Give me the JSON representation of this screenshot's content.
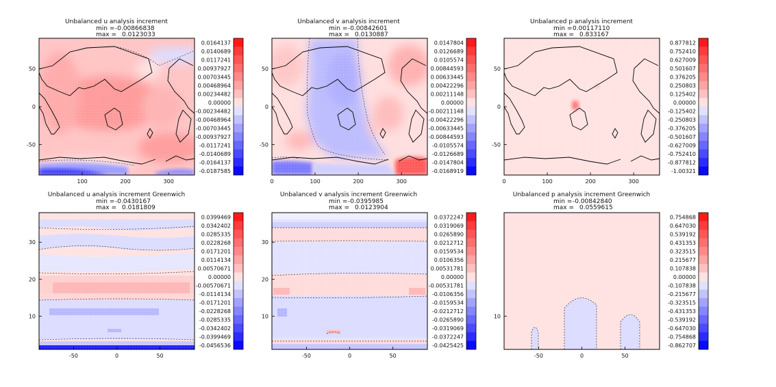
{
  "chart_data": [
    {
      "type": "heatmap",
      "title": "Unbalanced u analysis increment",
      "min_label": "min =",
      "max_label": "max =",
      "min_value": "-0.00866838",
      "max_value": "0.0123033",
      "x_ticks": [
        "100",
        "200",
        "300"
      ],
      "y_ticks": [
        "50",
        "0",
        "-50"
      ],
      "xlim": [
        0,
        360
      ],
      "ylim": [
        -90,
        90
      ],
      "map": true,
      "colorbar": [
        "0.0164137",
        "0.0140689",
        "0.0117241",
        "0.00937927",
        "0.00703445",
        "0.00468964",
        "0.00234482",
        "0.00000",
        "-0.00234482",
        "-0.00468964",
        "-0.00703445",
        "-0.00937927",
        "-0.0117241",
        "-0.0140689",
        "-0.0164137",
        "-0.0187585"
      ]
    },
    {
      "type": "heatmap",
      "title": "Unbalanced v analysis increment",
      "min_label": "min =",
      "max_label": "max =",
      "min_value": "-0.00842601",
      "max_value": "0.0130887",
      "x_ticks": [
        "0",
        "100",
        "200",
        "300"
      ],
      "y_ticks": [
        "50",
        "0",
        "-50"
      ],
      "xlim": [
        0,
        360
      ],
      "ylim": [
        -90,
        90
      ],
      "map": true,
      "colorbar": [
        "0.0147804",
        "0.0126689",
        "0.0105574",
        "0.00844593",
        "0.00633445",
        "0.00422296",
        "0.00211148",
        "0.00000",
        "-0.00211148",
        "-0.00422296",
        "-0.00633445",
        "-0.00844593",
        "-0.0105574",
        "-0.0126689",
        "-0.0147804",
        "-0.0168919"
      ]
    },
    {
      "type": "heatmap",
      "title": "Unbalanced p analysis increment",
      "min_label": "min =",
      "max_label": "max =",
      "min_value": "0.00117110",
      "max_value": "0.833167",
      "x_ticks": [
        "0",
        "100",
        "200",
        "300"
      ],
      "y_ticks": [
        "50",
        "0",
        "-50"
      ],
      "xlim": [
        0,
        360
      ],
      "ylim": [
        -90,
        90
      ],
      "map": true,
      "colorbar": [
        "0.877812",
        "0.752410",
        "0.627009",
        "0.501607",
        "0.376205",
        "0.250803",
        "0.125402",
        "0.00000",
        "-0.125402",
        "-0.250803",
        "-0.376205",
        "-0.501607",
        "-0.627009",
        "-0.752410",
        "-0.877812",
        "-1.00321"
      ]
    },
    {
      "type": "heatmap",
      "title": "Unbalanced u analysis increment Greenwich",
      "min_label": "min =",
      "max_label": "max =",
      "min_value": "-0.0430167",
      "max_value": "0.0181809",
      "x_ticks": [
        "-50",
        "0",
        "50"
      ],
      "y_ticks": [
        "30",
        "20",
        "10"
      ],
      "xlim": [
        -90,
        90
      ],
      "ylim": [
        1,
        38
      ],
      "map": false,
      "colorbar": [
        "0.0399469",
        "0.0342402",
        "0.0285335",
        "0.0228268",
        "0.0171201",
        "0.0114134",
        "0.00570671",
        "0.00000",
        "-0.00570671",
        "-0.0114134",
        "-0.0171201",
        "-0.0228268",
        "-0.0285335",
        "-0.0342402",
        "-0.0399469",
        "-0.0456536"
      ]
    },
    {
      "type": "heatmap",
      "title": "Unbalanced v analysis increment Greenwich",
      "min_label": "min =",
      "max_label": "max =",
      "min_value": "-0.0395985",
      "max_value": "0.0123904",
      "x_ticks": [
        "-50",
        "0",
        "50"
      ],
      "y_ticks": [
        "30",
        "20",
        "10"
      ],
      "xlim": [
        -90,
        90
      ],
      "ylim": [
        1,
        38
      ],
      "map": false,
      "colorbar": [
        "0.0372247",
        "0.0319069",
        "0.0265890",
        "0.0212712",
        "0.0159534",
        "0.0106356",
        "0.00531781",
        "0.00000",
        "-0.00531781",
        "-0.0106356",
        "-0.0159534",
        "-0.0212712",
        "-0.0265890",
        "-0.0319069",
        "-0.0372247",
        "-0.0425425"
      ]
    },
    {
      "type": "heatmap",
      "title": "Unbalanced p analysis increment Greenwich",
      "min_label": "min =",
      "max_label": "max =",
      "min_value": "-0.00842840",
      "max_value": "0.0559615",
      "x_ticks": [
        "-50",
        "0",
        "50"
      ],
      "y_ticks": [
        "10"
      ],
      "xlim": [
        -90,
        90
      ],
      "ylim": [
        1,
        38
      ],
      "map": false,
      "colorbar": [
        "0.754868",
        "0.647030",
        "0.539192",
        "0.431353",
        "0.323515",
        "0.215677",
        "0.107838",
        "0.00000",
        "-0.107838",
        "-0.215677",
        "-0.323515",
        "-0.431353",
        "-0.539192",
        "-0.647030",
        "-0.754868",
        "-0.862707"
      ]
    }
  ],
  "colors": {
    "positive_steps": [
      "#ff1a1a",
      "#ff3b3b",
      "#ff5555",
      "#ff6f6f",
      "#ff8989",
      "#ffa3a3",
      "#ffc0c0",
      "#ffe1e1"
    ],
    "negative_steps": [
      "#e1e1ff",
      "#c2c2ff",
      "#a3a3ff",
      "#8585ff",
      "#6868ff",
      "#4a4aff",
      "#2c2cff",
      "#0a0aff"
    ],
    "coastline": "#000000"
  }
}
